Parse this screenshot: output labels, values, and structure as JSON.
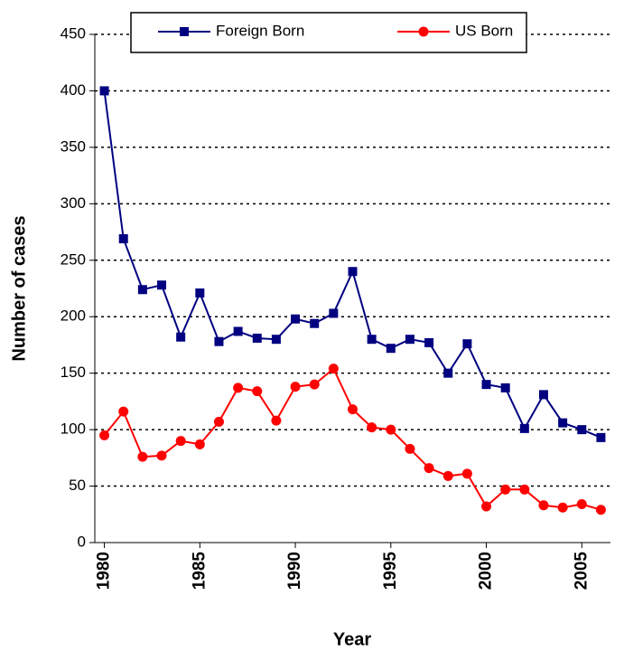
{
  "chart_data": {
    "type": "line",
    "x_label": "Year",
    "y_label": "Number of cases",
    "x": [
      1980,
      1981,
      1982,
      1983,
      1984,
      1985,
      1986,
      1987,
      1988,
      1989,
      1990,
      1991,
      1992,
      1993,
      1994,
      1995,
      1996,
      1997,
      1998,
      1999,
      2000,
      2001,
      2002,
      2003,
      2004,
      2005,
      2006
    ],
    "series": [
      {
        "name": "Foreign Born",
        "color": "#000080",
        "marker": "square",
        "values": [
          400,
          269,
          224,
          228,
          182,
          221,
          178,
          187,
          181,
          180,
          198,
          194,
          203,
          240,
          180,
          172,
          180,
          177,
          150,
          176,
          140,
          137,
          101,
          131,
          106,
          100,
          93
        ]
      },
      {
        "name": "US Born",
        "color": "#ff0000",
        "marker": "circle",
        "values": [
          95,
          116,
          76,
          77,
          90,
          87,
          107,
          137,
          134,
          108,
          138,
          140,
          154,
          118,
          102,
          100,
          83,
          66,
          59,
          61,
          32,
          47,
          47,
          33,
          31,
          34,
          29
        ]
      }
    ],
    "xlim": [
      1979.5,
      2006.5
    ],
    "xticks": [
      1980,
      1985,
      1990,
      1995,
      2000,
      2005
    ],
    "ylim": [
      0,
      450
    ],
    "yticks": [
      0,
      50,
      100,
      150,
      200,
      250,
      300,
      350,
      400,
      450
    ],
    "grid": true,
    "legend": "top"
  }
}
